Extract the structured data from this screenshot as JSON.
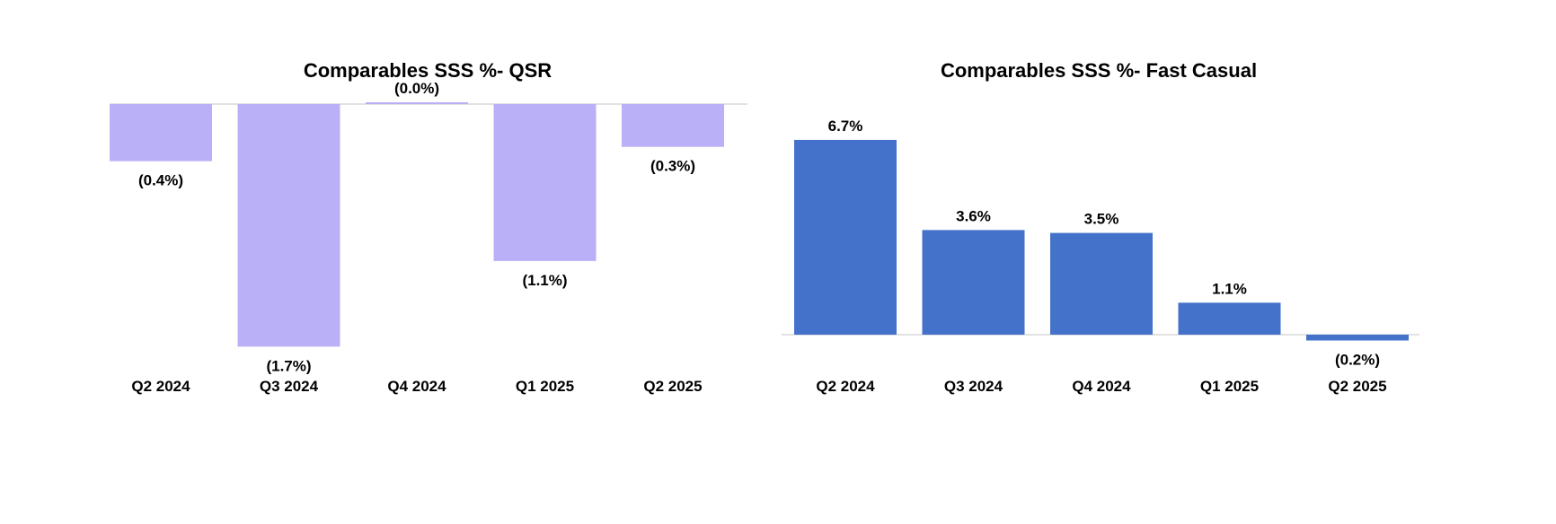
{
  "chart_data": [
    {
      "type": "bar",
      "title": "Comparables SSS %- QSR",
      "xlabel": "",
      "ylabel": "",
      "categories": [
        "Q2 2024",
        "Q3 2024",
        "Q4 2024",
        "Q1 2025",
        "Q2 2025"
      ],
      "values": [
        -0.4,
        -1.7,
        0.0,
        -1.1,
        -0.3
      ],
      "data_labels": [
        "(0.4%)",
        "(1.7%)",
        "(0.0%)",
        "(1.1%)",
        "(0.3%)"
      ],
      "ylim": [
        -1.7,
        0
      ],
      "grid": false,
      "legend": "none",
      "bar_color": "#B9B0F7",
      "axis_color": "#D9D9D9"
    },
    {
      "type": "bar",
      "title": "Comparables SSS %- Fast Casual",
      "xlabel": "",
      "ylabel": "",
      "categories": [
        "Q2 2024",
        "Q3 2024",
        "Q4 2024",
        "Q1 2025",
        "Q2 2025"
      ],
      "values": [
        6.7,
        3.6,
        3.5,
        1.1,
        -0.2
      ],
      "data_labels": [
        "6.7%",
        "3.6%",
        "3.5%",
        "1.1%",
        "(0.2%)"
      ],
      "ylim": [
        -0.2,
        6.7
      ],
      "grid": false,
      "legend": "none",
      "bar_color": "#4472CA",
      "axis_color": "#D9D9D9"
    }
  ]
}
